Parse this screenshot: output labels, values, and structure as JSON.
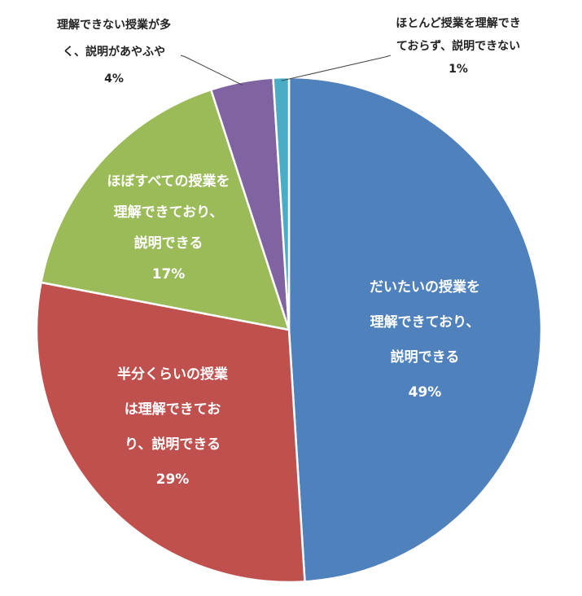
{
  "chart_data": {
    "type": "pie",
    "title": "",
    "start_angle_deg": 0,
    "direction": "clockwise",
    "slices": [
      {
        "key": "daitai",
        "lines": [
          "だいたいの授業を",
          "理解できており、",
          "説明できる"
        ],
        "percent_label": "49%",
        "value": 49,
        "color": "#4f81bd",
        "placement": "inside"
      },
      {
        "key": "hanbun",
        "lines": [
          "半分くらいの授業",
          "は理解できてお",
          "り、説明できる"
        ],
        "percent_label": "29%",
        "value": 29,
        "color": "#c0504d",
        "placement": "inside"
      },
      {
        "key": "hobo",
        "lines": [
          "ほぼすべての授業を",
          "理解できており、",
          "説明できる"
        ],
        "percent_label": "17%",
        "value": 17,
        "color": "#9bbb59",
        "placement": "inside"
      },
      {
        "key": "ooku",
        "lines": [
          "理解できない授業が多",
          "く、説明があやふや"
        ],
        "percent_label": "4%",
        "value": 4,
        "color": "#8064a2",
        "placement": "outside-left"
      },
      {
        "key": "hotondo",
        "lines": [
          "ほとんど授業を理解でき",
          "ておらず、説明できない"
        ],
        "percent_label": "1%",
        "value": 1,
        "color": "#4bacc6",
        "placement": "outside-right"
      }
    ]
  }
}
